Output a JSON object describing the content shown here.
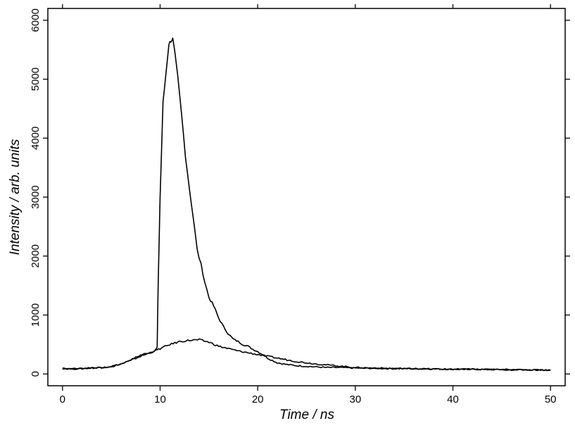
{
  "chart_data": {
    "type": "line",
    "title": "",
    "xlabel": "Time / ns",
    "ylabel": "Intensity / arb. units",
    "xlim": [
      -1.5,
      51.5
    ],
    "ylim": [
      -200,
      6200
    ],
    "xticks": [
      0,
      10,
      20,
      30,
      40,
      50
    ],
    "yticks": [
      0,
      1000,
      2000,
      3000,
      4000,
      5000,
      6000
    ],
    "legend": "none",
    "grid": false,
    "line_color": "#000000",
    "series": [
      {
        "x": [
          0,
          1,
          2,
          3,
          4,
          5,
          6,
          7,
          8,
          9,
          9.5,
          9.7,
          9.8,
          10.0,
          10.3,
          10.6,
          10.9,
          11.1,
          11.3,
          11.5,
          11.8,
          12.2,
          12.6,
          13.0,
          13.4,
          13.8,
          14.2,
          14.6,
          15.0,
          15.5,
          16.0,
          16.5,
          17.0,
          17.5,
          18.0,
          18.5,
          19.0,
          19.5,
          20.0,
          20.5,
          21.0,
          21.5,
          22.0,
          23.0,
          24.0,
          25.0,
          26.0,
          27.0,
          28.0,
          29.0,
          30.0,
          32.0,
          34.0,
          36.0,
          38.0,
          40.0,
          42.0,
          44.0,
          46.0,
          48.0,
          50.0
        ],
        "values": [
          100,
          90,
          95,
          110,
          105,
          120,
          170,
          240,
          320,
          370,
          400,
          450,
          1500,
          3000,
          4600,
          5100,
          5600,
          5650,
          5680,
          5450,
          5050,
          4400,
          3700,
          3150,
          2650,
          2100,
          1850,
          1550,
          1300,
          1150,
          950,
          800,
          680,
          590,
          550,
          500,
          470,
          420,
          380,
          330,
          270,
          230,
          190,
          160,
          140,
          130,
          120,
          110,
          110,
          105,
          100,
          95,
          90,
          90,
          85,
          80,
          80,
          75,
          75,
          70,
          65
        ]
      },
      {
        "x": [
          0,
          1,
          2,
          3,
          4,
          5,
          6,
          7,
          8,
          9,
          10,
          11,
          12,
          13,
          14,
          15,
          16,
          17,
          18,
          19,
          20,
          21,
          22,
          23,
          24,
          25,
          26,
          27,
          28,
          29,
          30,
          32,
          34,
          36,
          38,
          40,
          42,
          44,
          46,
          48,
          50
        ],
        "values": [
          90,
          85,
          90,
          100,
          110,
          130,
          170,
          230,
          300,
          360,
          430,
          500,
          550,
          570,
          580,
          540,
          470,
          430,
          390,
          360,
          330,
          300,
          270,
          240,
          210,
          190,
          170,
          155,
          140,
          125,
          110,
          100,
          95,
          90,
          85,
          80,
          80,
          75,
          70,
          70,
          65
        ]
      }
    ]
  }
}
